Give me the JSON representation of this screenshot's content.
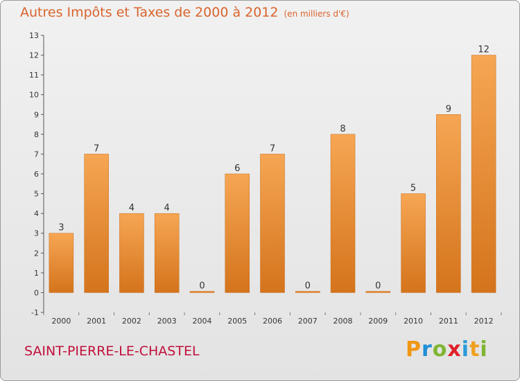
{
  "header": {
    "title": "Autres Impôts et Taxes de 2000 à 2012",
    "unit": "(en milliers d'€)"
  },
  "footer": {
    "commune": "SAINT-PIERRE-LE-CHASTEL",
    "logo": "Proxiti"
  },
  "colors": {
    "bar_top": "#f6a653",
    "bar_bottom": "#d4741c",
    "title": "#d9632c",
    "commune": "#c0103a"
  },
  "chart_data": {
    "type": "bar",
    "title": "Autres Impôts et Taxes de 2000 à 2012",
    "subtitle": "(en milliers d'€)",
    "xlabel": "",
    "ylabel": "",
    "categories": [
      "2000",
      "2001",
      "2002",
      "2003",
      "2004",
      "2005",
      "2006",
      "2007",
      "2008",
      "2009",
      "2010",
      "2011",
      "2012"
    ],
    "values": [
      3,
      7,
      4,
      4,
      0,
      6,
      7,
      0,
      8,
      0,
      5,
      9,
      12
    ],
    "ylim": [
      -1,
      13
    ],
    "yticks": [
      -1,
      0,
      1,
      2,
      3,
      4,
      5,
      6,
      7,
      8,
      9,
      10,
      11,
      12,
      13
    ],
    "grid": false,
    "data_labels": true
  }
}
